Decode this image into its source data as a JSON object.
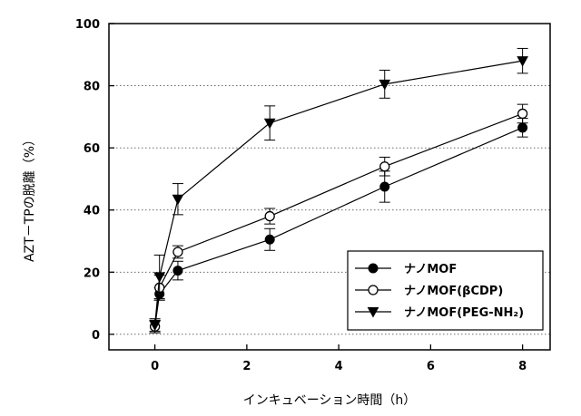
{
  "chart_data": {
    "type": "line",
    "xlabel": "インキュベーション時間（h）",
    "ylabel": "AZT－TPの脱離（%）",
    "xlim": [
      -1,
      8.6
    ],
    "ylim": [
      -5,
      100
    ],
    "xticks": [
      0,
      2,
      4,
      6,
      8
    ],
    "yticks": [
      0,
      20,
      40,
      60,
      80,
      100
    ],
    "grid": "horizontal dotted",
    "legend_position": "bottom-right",
    "series": [
      {
        "name": "ナノMOF",
        "marker": "filled-circle",
        "x": [
          0,
          0.1,
          0.5,
          2.5,
          5,
          8
        ],
        "y": [
          2.5,
          13,
          20.5,
          30.5,
          47.5,
          66.5
        ],
        "err": [
          2,
          2,
          3,
          3.5,
          5,
          3
        ]
      },
      {
        "name": "ナノMOF(βCDP)",
        "marker": "open-circle",
        "x": [
          0,
          0.1,
          0.5,
          2.5,
          5,
          8
        ],
        "y": [
          2.5,
          15,
          26.5,
          38,
          54,
          71
        ],
        "err": [
          2,
          4,
          2,
          2.5,
          3,
          3
        ]
      },
      {
        "name": "ナノMOF(PEG-NH₂)",
        "marker": "filled-triangle-down",
        "x": [
          0,
          0.1,
          0.5,
          2.5,
          5,
          8
        ],
        "y": [
          3,
          18.5,
          43.5,
          68,
          80.5,
          88
        ],
        "err": [
          2,
          7,
          5,
          5.5,
          4.5,
          4
        ]
      }
    ]
  }
}
